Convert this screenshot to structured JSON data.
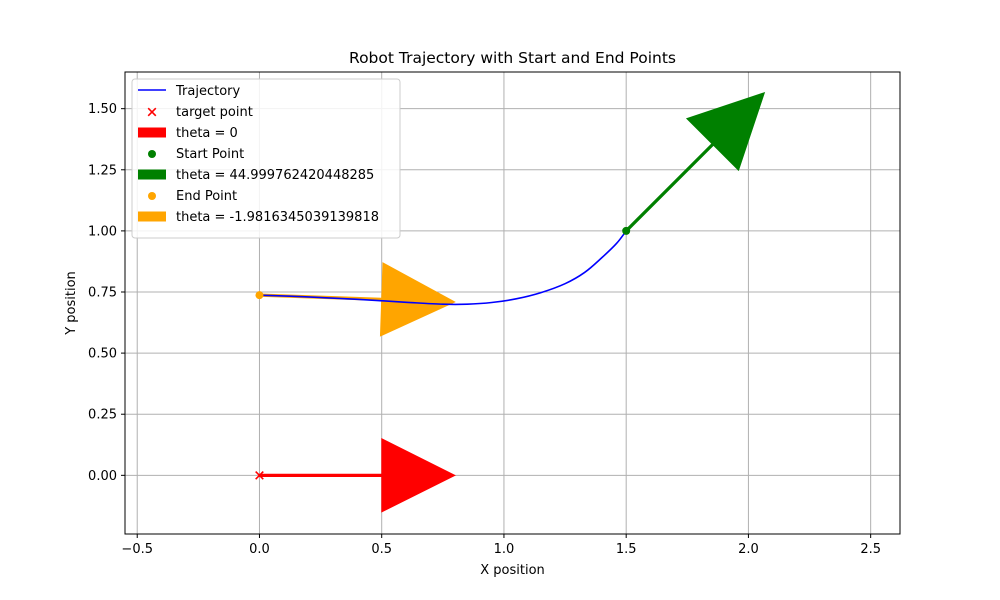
{
  "chart_data": {
    "type": "line",
    "title": "Robot Trajectory with Start and End Points",
    "xlabel": "X position",
    "ylabel": "Y position",
    "xlim": [
      -0.55,
      2.62
    ],
    "ylim": [
      -0.24,
      1.65
    ],
    "xticks": [
      -0.5,
      0.0,
      0.5,
      1.0,
      1.5,
      2.0,
      2.5
    ],
    "xtick_labels": [
      "−0.5",
      "0.0",
      "0.5",
      "1.0",
      "1.5",
      "2.0",
      "2.5"
    ],
    "yticks": [
      0.0,
      0.25,
      0.5,
      0.75,
      1.0,
      1.25,
      1.5
    ],
    "ytick_labels": [
      "0.00",
      "0.25",
      "0.50",
      "0.75",
      "1.00",
      "1.25",
      "1.50"
    ],
    "grid": true,
    "legend_position": "top-left",
    "trajectory": {
      "name": "Trajectory",
      "color": "#0000ff",
      "points": [
        [
          0.0,
          0.737
        ],
        [
          0.2,
          0.73
        ],
        [
          0.4,
          0.72
        ],
        [
          0.6,
          0.708
        ],
        [
          0.75,
          0.7
        ],
        [
          0.85,
          0.7
        ],
        [
          0.95,
          0.707
        ],
        [
          1.05,
          0.722
        ],
        [
          1.15,
          0.747
        ],
        [
          1.25,
          0.784
        ],
        [
          1.33,
          0.83
        ],
        [
          1.4,
          0.89
        ],
        [
          1.46,
          0.948
        ],
        [
          1.5,
          1.0
        ]
      ]
    },
    "target_point": {
      "name": "target point",
      "x": 0.0,
      "y": 0.0,
      "color": "#ff0000",
      "marker": "x"
    },
    "start_point": {
      "name": "Start Point",
      "x": 1.5,
      "y": 1.0,
      "color": "#008000",
      "marker": "o"
    },
    "end_point": {
      "name": "End Point",
      "x": 0.0,
      "y": 0.737,
      "color": "#ffa500",
      "marker": "o"
    },
    "arrows": [
      {
        "name": "theta = 0",
        "color": "#ff0000",
        "x": 0.0,
        "y": 0.0,
        "theta_deg": 0
      },
      {
        "name": "theta = 44.999762420448285",
        "color": "#008000",
        "x": 1.5,
        "y": 1.0,
        "theta_deg": 44.999762420448285
      },
      {
        "name": "theta = -1.9816345039139818",
        "color": "#ffa500",
        "x": 0.0,
        "y": 0.737,
        "theta_deg": -1.9816345039139818
      }
    ],
    "legend": [
      {
        "label": "Trajectory",
        "kind": "line",
        "color": "#0000ff"
      },
      {
        "label": "target point",
        "kind": "x",
        "color": "#ff0000"
      },
      {
        "label": "theta = 0",
        "kind": "patch",
        "color": "#ff0000"
      },
      {
        "label": "Start Point",
        "kind": "dot",
        "color": "#008000"
      },
      {
        "label": "theta = 44.999762420448285",
        "kind": "patch",
        "color": "#008000"
      },
      {
        "label": "End Point",
        "kind": "dot",
        "color": "#ffa500"
      },
      {
        "label": "theta = -1.9816345039139818",
        "kind": "patch",
        "color": "#ffa500"
      }
    ]
  }
}
